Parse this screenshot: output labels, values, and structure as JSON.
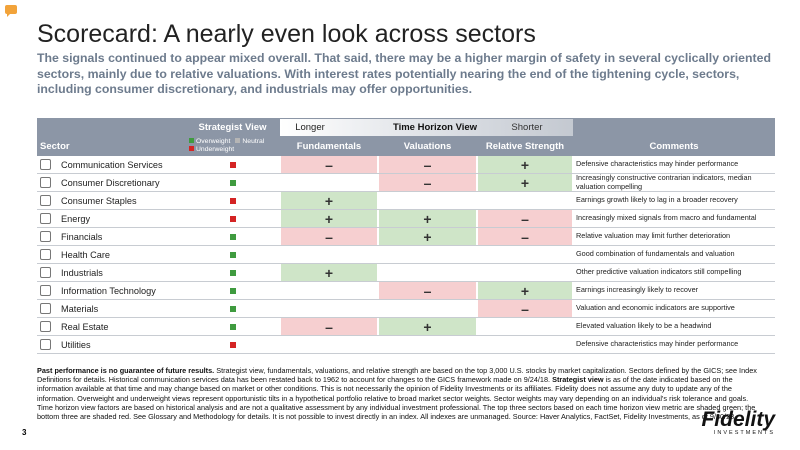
{
  "title": "Scorecard: A nearly even look across sectors",
  "subtitle": "The signals continued to appear mixed overall. That said, there may be a higher margin of safety in several cyclically oriented sectors, mainly due to relative valuations. With interest rates potentially nearing the end of the tightening cycle, sectors, including consumer discretionary, and industrials may offer opportunities.",
  "table": {
    "headers": {
      "strategist_view": "Strategist View",
      "longer": "Longer",
      "time_horizon": "Time Horizon View",
      "shorter": "Shorter",
      "sector": "Sector",
      "fundamentals": "Fundamentals",
      "valuations": "Valuations",
      "relative_strength": "Relative Strength",
      "comments": "Comments"
    },
    "legend": [
      {
        "name": "Overweight",
        "color": "#3f9b3f"
      },
      {
        "name": "Neutral",
        "color": "#b5b5b5"
      },
      {
        "name": "Underweight",
        "color": "#d42424"
      }
    ],
    "shading": {
      "+": "#cfe5c8",
      "–": "#f6cfd0"
    },
    "rows": [
      {
        "sector": "Communication Services",
        "view": "Underweight",
        "fundamentals": "–",
        "valuations": "–",
        "relative_strength": "+",
        "comment": "Defensive characteristics may hinder performance"
      },
      {
        "sector": "Consumer Discretionary",
        "view": "Overweight",
        "fundamentals": null,
        "valuations": "–",
        "relative_strength": "+",
        "comment": "Increasingly constructive contrarian indicators, median valuation compelling"
      },
      {
        "sector": "Consumer Staples",
        "view": "Underweight",
        "fundamentals": "+",
        "valuations": null,
        "relative_strength": null,
        "comment": "Earnings growth likely to lag in a broader recovery"
      },
      {
        "sector": "Energy",
        "view": "Underweight",
        "fundamentals": "+",
        "valuations": "+",
        "relative_strength": "–",
        "comment": "Increasingly mixed signals from macro and fundamental"
      },
      {
        "sector": "Financials",
        "view": "Overweight",
        "fundamentals": "–",
        "valuations": "+",
        "relative_strength": "–",
        "comment": "Relative valuation may limit further deterioration"
      },
      {
        "sector": "Health Care",
        "view": "Overweight",
        "fundamentals": null,
        "valuations": null,
        "relative_strength": null,
        "comment": "Good combination of fundamentals and valuation"
      },
      {
        "sector": "Industrials",
        "view": "Overweight",
        "fundamentals": "+",
        "valuations": null,
        "relative_strength": null,
        "comment": "Other predictive valuation indicators still compelling"
      },
      {
        "sector": "Information Technology",
        "view": "Overweight",
        "fundamentals": null,
        "valuations": "–",
        "relative_strength": "+",
        "comment": "Earnings increasingly likely to recover"
      },
      {
        "sector": "Materials",
        "view": "Overweight",
        "fundamentals": null,
        "valuations": null,
        "relative_strength": "–",
        "comment": "Valuation and economic indicators are supportive"
      },
      {
        "sector": "Real Estate",
        "view": "Overweight",
        "fundamentals": "–",
        "valuations": "+",
        "relative_strength": null,
        "comment": "Elevated valuation likely to be a headwind"
      },
      {
        "sector": "Utilities",
        "view": "Underweight",
        "fundamentals": null,
        "valuations": null,
        "relative_strength": null,
        "comment": "Defensive characteristics may hinder performance"
      }
    ]
  },
  "footnote": [
    {
      "text": "Past performance is no guarantee of future results.",
      "bold": true
    },
    {
      "text": " Strategist view, fundamentals, valuations, and relative strength are based on the top 3,000 U.S. stocks by market capitalization. Sectors defined by the GICS; see Index Definitions for details. Historical communication services data has been restated back to 1962 to account for changes to the GICS framework made on 9/24/18. ",
      "bold": false
    },
    {
      "text": "Strategist view",
      "bold": true
    },
    {
      "text": " is as of the date indicated based on the information available at that time and may change based on market or other conditions. This is not necessarily the opinion of Fidelity Investments or its affiliates. Fidelity does not assume any duty to update any of the information. Overweight and underweight views represent opportunistic tilts in a hypothetical portfolio relative to broad market sector weights. Sector weights may vary depending on an individual's risk tolerance and goals. Time horizon view factors are based on historical analysis and are not a qualitative assessment by any individual investment professional. The top three sectors based on each time horizon view metric are shaded green; the bottom three are shaded red. See Glossary and Methodology for details. It is not possible to invest directly in an index. All indexes are unmanaged. Source: Haver Analytics, FactSet, Fidelity Investments, as of 9/30/23.",
      "bold": false
    }
  ],
  "page_number": "3",
  "logo": {
    "name": "Fidelity",
    "tagline": "INVESTMENTS"
  }
}
